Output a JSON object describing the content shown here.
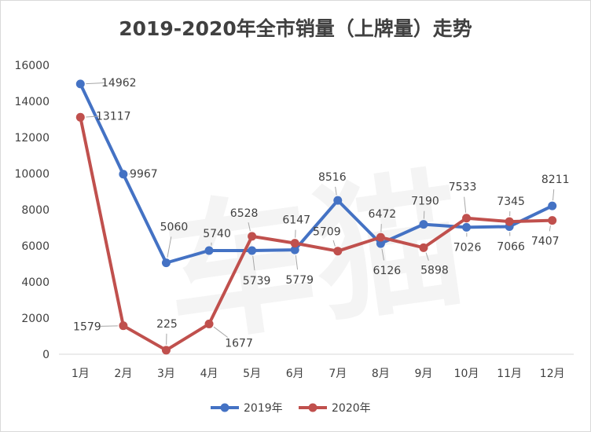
{
  "chart_data": {
    "type": "line",
    "title": "2019-2020年全市销量（上牌量）走势",
    "categories": [
      "1月",
      "2月",
      "3月",
      "4月",
      "5月",
      "6月",
      "7月",
      "8月",
      "9月",
      "10月",
      "11月",
      "12月"
    ],
    "series": [
      {
        "name": "2019年",
        "color": "#4472c4",
        "values": [
          14962,
          9967,
          5060,
          5740,
          5739,
          5779,
          8516,
          6126,
          7190,
          7026,
          7066,
          8211
        ]
      },
      {
        "name": "2020年",
        "color": "#c0504d",
        "values": [
          13117,
          1579,
          225,
          1677,
          6528,
          6147,
          5709,
          6472,
          5898,
          7533,
          7345,
          7407
        ]
      }
    ],
    "ylim": [
      0,
      16000
    ],
    "yticks": [
      0,
      2000,
      4000,
      6000,
      8000,
      10000,
      12000,
      14000,
      16000
    ],
    "xlabel": "",
    "ylabel": "",
    "grid": false,
    "legend": "bottom"
  },
  "watermark": "车猫"
}
